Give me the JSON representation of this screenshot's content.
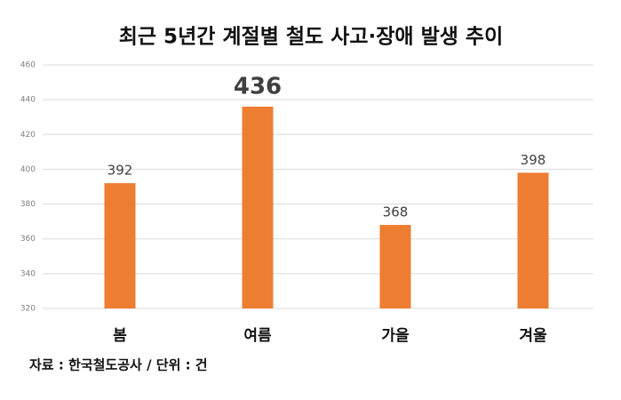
{
  "chart_data": {
    "type": "bar",
    "title": "최근 5년간 계절별 철도 사고·장애 발생 추이",
    "categories": [
      "봄",
      "여름",
      "가을",
      "겨울"
    ],
    "values": [
      392,
      436,
      368,
      398
    ],
    "color": "#ed7d31",
    "ylim": [
      320,
      460
    ],
    "yticks": [
      320,
      340,
      360,
      380,
      400,
      420,
      440,
      460
    ],
    "grid": true,
    "source": "자료 : 한국철도공사 / 단위 : 건"
  }
}
